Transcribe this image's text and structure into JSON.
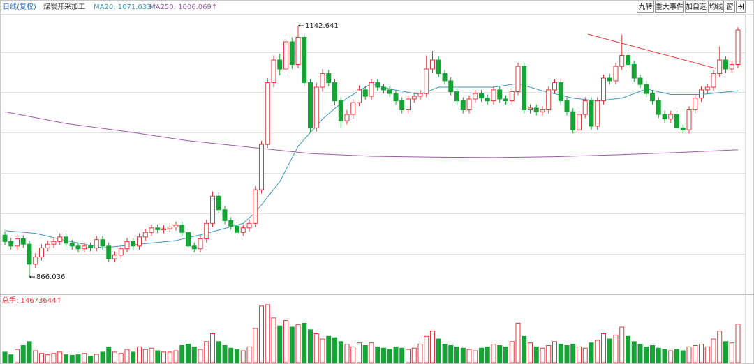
{
  "chart_data": {
    "type": "candlestick",
    "header": {
      "period": "日线(复权)",
      "name": "煤炭开采加工",
      "ma20_label": "MA20: 1071.033↑",
      "ma250_label": "MA250: 1006.069↑"
    },
    "buttons": [
      "九转",
      "重大事件",
      "加自选",
      "均线",
      "窗"
    ],
    "volume_label": "总手: 14673644↑",
    "annotations": [
      {
        "text": "1142.641",
        "index": 48,
        "value": 1142.641
      },
      {
        "text": "866.036",
        "index": 4,
        "value": 866.036
      }
    ],
    "ylim": [
      848.4,
      1155.7
    ],
    "up_color": "#e8353a",
    "down_color": "#17a336",
    "open": [
      912,
      905,
      900,
      908,
      902,
      880,
      888,
      898,
      902,
      905,
      910,
      903,
      900,
      897,
      900,
      898,
      907,
      900,
      886,
      890,
      897,
      905,
      900,
      910,
      915,
      920,
      918,
      919,
      921,
      923,
      915,
      900,
      897,
      908,
      925,
      955,
      940,
      928,
      922,
      915,
      920,
      925,
      962,
      1012,
      1080,
      1105,
      1095,
      1125,
      1100,
      1130,
      1080,
      1030,
      1075,
      1090,
      1080,
      1060,
      1038,
      1045,
      1058,
      1072,
      1065,
      1080,
      1075,
      1072,
      1068,
      1060,
      1050,
      1062,
      1065,
      1068,
      1095,
      1105,
      1090,
      1082,
      1070,
      1060,
      1050,
      1062,
      1068,
      1063,
      1060,
      1072,
      1062,
      1060,
      1070,
      1098,
      1050,
      1052,
      1048,
      1050,
      1072,
      1080,
      1060,
      1048,
      1028,
      1045,
      1060,
      1032,
      1060,
      1085,
      1082,
      1098,
      1110,
      1100,
      1085,
      1078,
      1068,
      1060,
      1045,
      1040,
      1045,
      1030,
      1028,
      1050,
      1063,
      1072,
      1075,
      1090,
      1105,
      1095,
      1100
    ],
    "high": [
      916,
      909,
      912,
      912,
      906,
      892,
      902,
      906,
      909,
      914,
      914,
      907,
      904,
      904,
      904,
      911,
      911,
      904,
      894,
      901,
      909,
      909,
      914,
      919,
      924,
      924,
      923,
      925,
      927,
      927,
      919,
      904,
      912,
      929,
      960,
      959,
      944,
      932,
      926,
      924,
      929,
      966,
      1016,
      1085,
      1110,
      1112,
      1130,
      1130,
      1142.641,
      1134,
      1084,
      1080,
      1095,
      1094,
      1084,
      1064,
      1050,
      1062,
      1077,
      1076,
      1084,
      1084,
      1079,
      1076,
      1072,
      1064,
      1066,
      1069,
      1072,
      1110,
      1115,
      1109,
      1094,
      1086,
      1074,
      1064,
      1066,
      1072,
      1072,
      1067,
      1076,
      1076,
      1066,
      1074,
      1102,
      1102,
      1056,
      1056,
      1054,
      1076,
      1084,
      1084,
      1064,
      1052,
      1049,
      1064,
      1064,
      1064,
      1089,
      1090,
      1102,
      1133,
      1114,
      1104,
      1089,
      1082,
      1072,
      1064,
      1049,
      1049,
      1049,
      1034,
      1054,
      1067,
      1076,
      1079,
      1094,
      1120,
      1109,
      1104,
      1141
    ],
    "low": [
      901,
      896,
      896,
      898,
      866.036,
      876,
      884,
      894,
      898,
      901,
      899,
      896,
      893,
      893,
      894,
      894,
      896,
      882,
      882,
      886,
      893,
      896,
      896,
      906,
      911,
      914,
      914,
      915,
      917,
      911,
      896,
      893,
      893,
      904,
      921,
      936,
      924,
      918,
      911,
      911,
      916,
      921,
      958,
      1008,
      1075,
      1088,
      1090,
      1095,
      1096,
      1076,
      1025,
      1026,
      1070,
      1076,
      1055,
      1030,
      1034,
      1040,
      1054,
      1061,
      1061,
      1071,
      1068,
      1064,
      1056,
      1046,
      1046,
      1058,
      1061,
      1064,
      1091,
      1086,
      1078,
      1066,
      1056,
      1046,
      1046,
      1058,
      1059,
      1056,
      1056,
      1058,
      1056,
      1056,
      1066,
      1046,
      1046,
      1044,
      1044,
      1046,
      1068,
      1056,
      1044,
      1024,
      1024,
      1041,
      1028,
      1028,
      1056,
      1078,
      1078,
      1094,
      1096,
      1081,
      1074,
      1064,
      1056,
      1041,
      1036,
      1036,
      1026,
      1024,
      1024,
      1046,
      1059,
      1068,
      1071,
      1086,
      1091,
      1091,
      1096
    ],
    "close": [
      905,
      900,
      908,
      902,
      880,
      888,
      898,
      902,
      905,
      910,
      903,
      900,
      897,
      900,
      898,
      907,
      900,
      886,
      890,
      897,
      905,
      900,
      910,
      915,
      920,
      918,
      919,
      921,
      923,
      915,
      900,
      897,
      908,
      925,
      955,
      940,
      928,
      922,
      915,
      920,
      925,
      962,
      1012,
      1080,
      1105,
      1095,
      1125,
      1100,
      1130,
      1080,
      1030,
      1075,
      1090,
      1080,
      1060,
      1038,
      1045,
      1058,
      1072,
      1065,
      1080,
      1075,
      1072,
      1068,
      1060,
      1050,
      1062,
      1065,
      1068,
      1095,
      1105,
      1090,
      1082,
      1070,
      1060,
      1050,
      1062,
      1068,
      1063,
      1060,
      1072,
      1062,
      1060,
      1070,
      1098,
      1050,
      1052,
      1048,
      1050,
      1072,
      1080,
      1060,
      1048,
      1028,
      1045,
      1060,
      1032,
      1060,
      1085,
      1082,
      1098,
      1110,
      1100,
      1085,
      1078,
      1068,
      1060,
      1045,
      1040,
      1045,
      1030,
      1028,
      1050,
      1063,
      1072,
      1075,
      1090,
      1105,
      1095,
      1100,
      1138
    ],
    "volume": [
      4000000,
      3000000,
      5000000,
      6500000,
      8000000,
      4500000,
      3500000,
      3000000,
      3500000,
      4000000,
      3000000,
      2800000,
      3000000,
      3500000,
      2500000,
      3200000,
      4000000,
      6000000,
      4000000,
      3500000,
      5000000,
      4000000,
      6000000,
      5000000,
      5500000,
      4500000,
      4000000,
      4000000,
      4500000,
      6500000,
      7000000,
      6000000,
      5000000,
      8000000,
      11000000,
      8000000,
      6500000,
      5500000,
      5000000,
      4500000,
      6000000,
      13000000,
      21500000,
      22000000,
      17000000,
      14000000,
      16000000,
      13500000,
      14500000,
      15000000,
      12500000,
      11000000,
      9000000,
      10000000,
      9500000,
      8000000,
      7000000,
      6000000,
      7500000,
      6500000,
      7500000,
      6000000,
      5500000,
      5000000,
      6000000,
      5500000,
      5000000,
      5500000,
      7000000,
      10000000,
      12000000,
      9000000,
      7000000,
      6500000,
      6000000,
      5500000,
      5000000,
      4500000,
      5500000,
      6000000,
      7000000,
      6500000,
      6000000,
      8000000,
      15000000,
      10000000,
      7500000,
      6000000,
      5500000,
      6500000,
      8000000,
      7000000,
      6500000,
      7000000,
      6000000,
      5500000,
      7500000,
      8500000,
      11000000,
      9000000,
      10500000,
      13500000,
      10000000,
      8000000,
      7000000,
      6000000,
      6500000,
      5500000,
      5000000,
      4500000,
      5000000,
      4500000,
      6000000,
      6500000,
      7000000,
      6000000,
      9000000,
      12000000,
      8000000,
      7500000,
      14673644
    ],
    "volume_lim": [
      0,
      22000000
    ],
    "series": [
      {
        "name": "MA20",
        "color": "#3a9ab8",
        "x": [
          0,
          5,
          10,
          16,
          22,
          28,
          33,
          39,
          41,
          45,
          48,
          52,
          56,
          60,
          63,
          68,
          71,
          75,
          80,
          84,
          88,
          93,
          97,
          101,
          105,
          109,
          114,
          120
        ],
        "values": [
          917,
          914,
          906,
          898,
          902,
          906,
          914,
          925,
          937,
          971,
          1010,
          1040,
          1063,
          1079,
          1073,
          1067,
          1075,
          1075,
          1075,
          1079,
          1071,
          1063,
          1060,
          1063,
          1073,
          1067,
          1067,
          1071.033
        ]
      },
      {
        "name": "MA250",
        "color": "#a05aa8",
        "x": [
          0,
          10,
          20,
          30,
          40,
          50,
          60,
          70,
          80,
          90,
          100,
          110,
          120
        ],
        "values": [
          1048,
          1035,
          1026,
          1016,
          1009,
          1002,
          999,
          998,
          997.5,
          998.5,
          1000.5,
          1003,
          1006.069
        ]
      }
    ]
  }
}
